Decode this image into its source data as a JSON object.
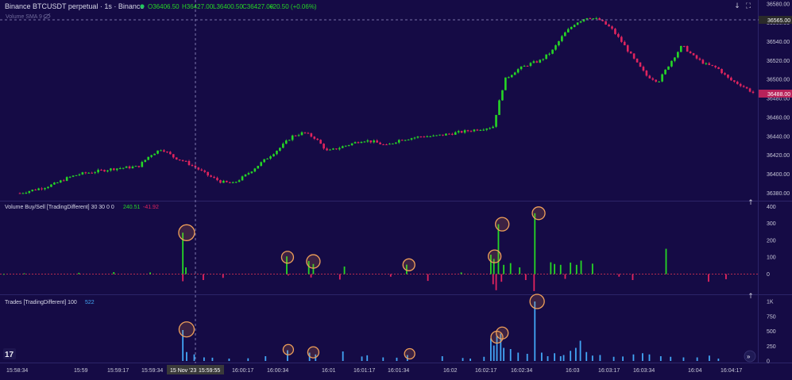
{
  "header": {
    "symbol": "Binance BTCUSDT perpetual · 1s · Binance",
    "open": "O36406.50",
    "high": "H36427.00",
    "low": "L36400.50",
    "close": "C36427.00",
    "change": "+20.50 (+0.06%)"
  },
  "panes": {
    "price": {
      "overlay_label": "Volume SMA 9"
    },
    "volume": {
      "label": "Volume Buy/Sell [TradingDifferent] 30 30 0 0",
      "buy_value": "240.51",
      "sell_value": "-41.92"
    },
    "trades": {
      "label": "Trades [TradingDifferent] 100",
      "value": "522"
    }
  },
  "right_axis": {
    "price_badge": "36565.00",
    "last_price_badge": "36488.00"
  },
  "time_axis": {
    "highlight": "15 Nov '23",
    "highlight_time": "15:59:55"
  },
  "colors": {
    "background": "#150b45",
    "up": "#26d626",
    "down": "#e0245e",
    "trades": "#42a5f5",
    "circle": "#f0a05a"
  },
  "chart_data": [
    {
      "type": "candlestick",
      "title": "Binance BTCUSDT perpetual · 1s · Binance",
      "x": [
        "15:58:34",
        "15:59",
        "15:59:17",
        "15:59:34",
        "15:59:55",
        "16:00:17",
        "16:00:34",
        "16:01",
        "16:01:17",
        "16:01:34",
        "16:02",
        "16:02:17",
        "16:02:34",
        "16:03",
        "16:03:17",
        "16:03:34",
        "16:04",
        "16:04:17"
      ],
      "close_path": [
        36380,
        36383,
        36386,
        36390,
        36396,
        36400,
        36402,
        36404,
        36406,
        36407,
        36408,
        36420,
        36427,
        36418,
        36413,
        36406,
        36398,
        36392,
        36390,
        36398,
        36408,
        36418,
        36428,
        36440,
        36444,
        36438,
        36424,
        36428,
        36432,
        36436,
        36434,
        36430,
        36436,
        36438,
        36440,
        36440,
        36442,
        36444,
        36446,
        36448,
        36450,
        36500,
        36510,
        36516,
        36520,
        36530,
        36548,
        36560,
        36566,
        36563,
        36554,
        36538,
        36520,
        36504,
        36498,
        36518,
        36536,
        36524,
        36516,
        36512,
        36500,
        36494,
        36486
      ],
      "y_ticks": [
        36380,
        36400,
        36420,
        36440,
        36460,
        36480,
        36500,
        36520,
        36540,
        36560,
        36580
      ],
      "ylim": [
        36372,
        36584
      ]
    },
    {
      "type": "bar",
      "title": "Volume Buy/Sell [TradingDifferent] 30 30 0 0",
      "series": [
        {
          "name": "Buy",
          "points": [
            [
              0.5,
              1
            ],
            [
              3.2,
              5
            ],
            [
              10.4,
              8
            ],
            [
              15.0,
              12
            ],
            [
              19.8,
              10
            ],
            [
              24.1,
              245
            ],
            [
              24.5,
              40
            ],
            [
              37.8,
              105
            ],
            [
              40.7,
              78
            ],
            [
              41.3,
              60
            ],
            [
              45.4,
              45
            ],
            [
              53.6,
              56
            ],
            [
              60.8,
              10
            ],
            [
              64.7,
              115
            ],
            [
              65.1,
              90
            ],
            [
              65.7,
              295
            ],
            [
              66.4,
              55
            ],
            [
              67.3,
              65
            ],
            [
              68.5,
              40
            ],
            [
              70.5,
              360
            ],
            [
              72.6,
              70
            ],
            [
              73.1,
              60
            ],
            [
              73.9,
              55
            ],
            [
              75.2,
              68
            ],
            [
              76.0,
              55
            ],
            [
              76.6,
              80
            ],
            [
              78.1,
              62
            ],
            [
              87.8,
              150
            ]
          ]
        },
        {
          "name": "Sell",
          "points": [
            [
              24.1,
              -42
            ],
            [
              26.8,
              -35
            ],
            [
              29.4,
              -22
            ],
            [
              38.0,
              -8
            ],
            [
              41.0,
              -20
            ],
            [
              44.8,
              -32
            ],
            [
              51.5,
              -15
            ],
            [
              56.4,
              -40
            ],
            [
              65.0,
              -60
            ],
            [
              65.4,
              -95
            ],
            [
              66.1,
              -45
            ],
            [
              69.3,
              -35
            ],
            [
              70.4,
              -100
            ],
            [
              74.5,
              -28
            ],
            [
              81.6,
              -15
            ],
            [
              83.4,
              -35
            ],
            [
              93.4,
              -45
            ],
            [
              95.7,
              -30
            ]
          ]
        }
      ],
      "y_ticks": [
        0,
        100,
        200,
        300,
        400
      ],
      "ylim": [
        -110,
        420
      ]
    },
    {
      "type": "bar",
      "title": "Trades [TradingDifferent] 100",
      "series": [
        {
          "name": "Trades",
          "points": [
            [
              24.1,
              520
            ],
            [
              24.6,
              150
            ],
            [
              25.6,
              110
            ],
            [
              26.9,
              60
            ],
            [
              28.0,
              55
            ],
            [
              30.2,
              40
            ],
            [
              32.7,
              45
            ],
            [
              35.0,
              80
            ],
            [
              37.9,
              180
            ],
            [
              40.8,
              140
            ],
            [
              41.6,
              110
            ],
            [
              45.2,
              160
            ],
            [
              47.7,
              75
            ],
            [
              48.4,
              95
            ],
            [
              50.5,
              60
            ],
            [
              52.3,
              55
            ],
            [
              53.7,
              100
            ],
            [
              58.3,
              80
            ],
            [
              61.0,
              50
            ],
            [
              62.0,
              40
            ],
            [
              63.8,
              70
            ],
            [
              64.7,
              380
            ],
            [
              65.1,
              260
            ],
            [
              65.5,
              420
            ],
            [
              66.0,
              460
            ],
            [
              66.4,
              220
            ],
            [
              67.3,
              200
            ],
            [
              68.3,
              140
            ],
            [
              69.5,
              120
            ],
            [
              70.5,
              1000
            ],
            [
              71.4,
              140
            ],
            [
              72.2,
              80
            ],
            [
              73.1,
              130
            ],
            [
              73.9,
              80
            ],
            [
              74.3,
              100
            ],
            [
              75.2,
              170
            ],
            [
              75.9,
              220
            ],
            [
              76.5,
              340
            ],
            [
              77.3,
              150
            ],
            [
              78.1,
              90
            ],
            [
              79.1,
              100
            ],
            [
              80.9,
              70
            ],
            [
              82.1,
              75
            ],
            [
              83.5,
              110
            ],
            [
              84.7,
              130
            ],
            [
              85.6,
              110
            ],
            [
              87.1,
              80
            ],
            [
              88.4,
              70
            ],
            [
              90.1,
              60
            ],
            [
              91.9,
              60
            ],
            [
              93.5,
              90
            ],
            [
              94.7,
              40
            ]
          ]
        }
      ],
      "y_ticks": [
        0,
        250,
        500,
        750,
        "1K"
      ],
      "ylim": [
        0,
        1080
      ]
    }
  ]
}
